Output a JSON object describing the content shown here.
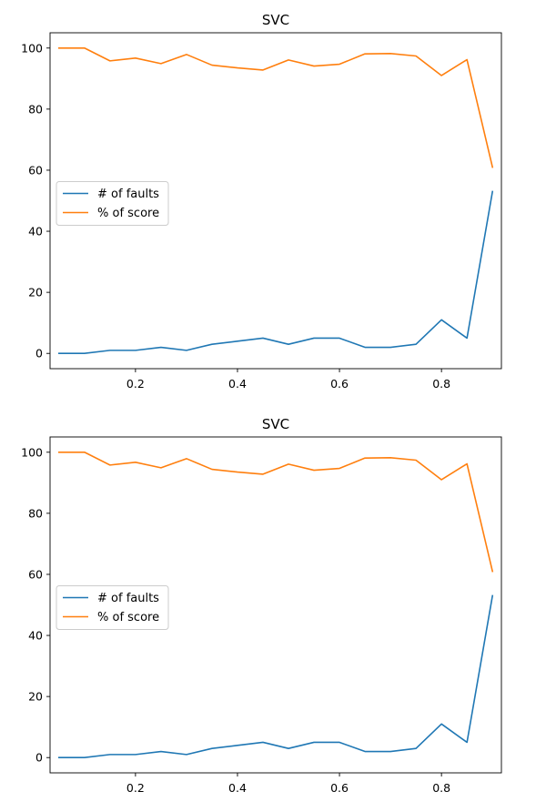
{
  "chart_data": [
    {
      "type": "line",
      "title": "SVC",
      "xlabel": "",
      "ylabel": "",
      "xlim": [
        0.0325,
        0.9175
      ],
      "ylim": [
        -5,
        105
      ],
      "x_ticks": [
        0.2,
        0.4,
        0.6,
        0.8
      ],
      "x_tick_labels": [
        "0.2",
        "0.4",
        "0.6",
        "0.8"
      ],
      "y_ticks": [
        0,
        20,
        40,
        60,
        80,
        100
      ],
      "y_tick_labels": [
        "0",
        "20",
        "40",
        "60",
        "80",
        "100"
      ],
      "grid": false,
      "legend_position": "center-left",
      "x": [
        0.05,
        0.1,
        0.15,
        0.2,
        0.25,
        0.3,
        0.35,
        0.4,
        0.45,
        0.5,
        0.55,
        0.6,
        0.65,
        0.7,
        0.75,
        0.8,
        0.85,
        0.9
      ],
      "series": [
        {
          "name": "# of faults",
          "color": "#1f77b4",
          "values": [
            0,
            0,
            1,
            1,
            2,
            1,
            3,
            4,
            5,
            3,
            5,
            5,
            2,
            2,
            3,
            11,
            5,
            53
          ]
        },
        {
          "name": "% of score",
          "color": "#ff7f0e",
          "values": [
            100,
            100,
            95.8,
            96.7,
            94.9,
            97.9,
            94.4,
            93.5,
            92.8,
            96.1,
            94.1,
            94.7,
            98.1,
            98.2,
            97.4,
            91.0,
            96.2,
            61.0
          ]
        }
      ]
    },
    {
      "type": "line",
      "title": "SVC",
      "xlabel": "",
      "ylabel": "",
      "xlim": [
        0.0325,
        0.9175
      ],
      "ylim": [
        -5,
        105
      ],
      "x_ticks": [
        0.2,
        0.4,
        0.6,
        0.8
      ],
      "x_tick_labels": [
        "0.2",
        "0.4",
        "0.6",
        "0.8"
      ],
      "y_ticks": [
        0,
        20,
        40,
        60,
        80,
        100
      ],
      "y_tick_labels": [
        "0",
        "20",
        "40",
        "60",
        "80",
        "100"
      ],
      "grid": false,
      "legend_position": "center-left",
      "x": [
        0.05,
        0.1,
        0.15,
        0.2,
        0.25,
        0.3,
        0.35,
        0.4,
        0.45,
        0.5,
        0.55,
        0.6,
        0.65,
        0.7,
        0.75,
        0.8,
        0.85,
        0.9
      ],
      "series": [
        {
          "name": "# of faults",
          "color": "#1f77b4",
          "values": [
            0,
            0,
            1,
            1,
            2,
            1,
            3,
            4,
            5,
            3,
            5,
            5,
            2,
            2,
            3,
            11,
            5,
            53
          ]
        },
        {
          "name": "% of score",
          "color": "#ff7f0e",
          "values": [
            100,
            100,
            95.8,
            96.7,
            94.9,
            97.9,
            94.4,
            93.5,
            92.8,
            96.1,
            94.1,
            94.7,
            98.1,
            98.2,
            97.4,
            91.0,
            96.2,
            61.0
          ]
        }
      ]
    }
  ]
}
